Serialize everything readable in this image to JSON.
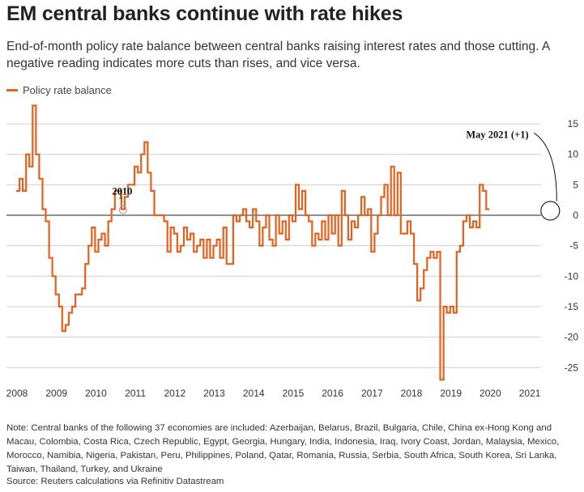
{
  "title": "EM central banks continue with rate hikes",
  "subtitle": "End-of-month policy rate balance between central banks raising interest rates and those cutting. A negative reading indicates more cuts than rises, and vice versa.",
  "note": "Note: Central banks of the following 37 economies are included: Azerbaijan, Belarus, Brazil, Bulgaria, Chile, China ex-Hong Kong and Macau, Colombia, Costa Rica, Czech Republic, Egypt, Georgia, Hungary, India, Indonesia, Iraq, Ivory Coast, Jordan, Malaysia, Mexico, Morocco, Namibia, Nigeria, Pakistan, Peru, Philippines, Poland, Qatar, Romania, Russia, Serbia, South Africa, South Korea, Sri Lanka, Taiwan, Thailand, Turkey, and Ukraine",
  "source": "Source: Reuters calculations via Refinitiv Datastream",
  "colors": {
    "series": "#E5601D",
    "grid": "#cfcfcf",
    "zero": "#222222"
  },
  "chart_data": {
    "type": "line",
    "step": true,
    "xlabel": "",
    "ylabel": "",
    "xlim": [
      2008.0,
      2021.6
    ],
    "ylim": [
      -27.5,
      17
    ],
    "y_ticks": [
      15,
      10,
      5,
      0,
      -5,
      -10,
      -15,
      -20,
      -25
    ],
    "x_ticks": [
      2008,
      2009,
      2010,
      2011,
      2012,
      2013,
      2014,
      2015,
      2016,
      2017,
      2018,
      2019,
      2020,
      2021
    ],
    "y_axis_position": "right",
    "grid": "horizontal",
    "legend_position": "top-left",
    "series": [
      {
        "name": "Policy rate balance",
        "start": "2008-01",
        "frequency": "monthly",
        "values": [
          4,
          6,
          4,
          10,
          8,
          18,
          10,
          6,
          1,
          -1,
          -7,
          -10,
          -13,
          -15,
          -19,
          -18,
          -16,
          -15,
          -13,
          -13,
          -12,
          -8,
          -5,
          -2,
          -6,
          -4,
          -3,
          -5,
          -1,
          1,
          4,
          4,
          1,
          3,
          5,
          5,
          8,
          7,
          10,
          12,
          7,
          4,
          0,
          0,
          0,
          -1,
          -6,
          -2,
          -3,
          -6,
          -5,
          -2,
          -4,
          -3,
          -6,
          -5,
          -4,
          -7,
          -4,
          -7,
          -5,
          -4,
          -7,
          -2,
          -8,
          -8,
          0,
          -1,
          0,
          1,
          -1,
          -2,
          1,
          -1,
          -5,
          -2,
          0,
          -4,
          -5,
          0,
          -3,
          -1,
          -4,
          0,
          -1,
          5,
          1,
          4,
          0,
          -1,
          -5,
          -3,
          -4,
          -1,
          -4,
          0,
          -3,
          0,
          -5,
          4,
          0,
          -4,
          -1,
          -2,
          0,
          3,
          0,
          1,
          -6,
          -3,
          0,
          3,
          5,
          0,
          8,
          0,
          7,
          -3,
          -3,
          -1,
          -3,
          -8,
          -14,
          -12,
          -9,
          -7,
          -6,
          -7,
          -6,
          -27,
          -15,
          -16,
          -15,
          -16,
          -6,
          -5,
          -1,
          0,
          -2,
          -1,
          -2,
          5,
          4,
          1
        ]
      }
    ],
    "annotations": [
      {
        "label": "2010",
        "marker": "1",
        "date": "2010-09",
        "value": 1
      },
      {
        "label": "May 2021 (+1)",
        "date": "2021-05",
        "value": 1
      }
    ]
  }
}
